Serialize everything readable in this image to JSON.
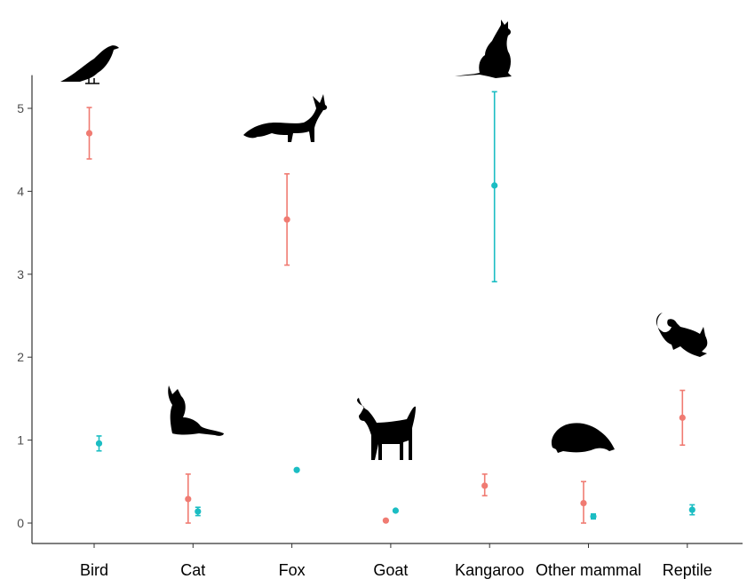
{
  "chart_data": {
    "type": "scatter",
    "categories": [
      "Bird",
      "Cat",
      "Fox",
      "Goat",
      "Kangaroo",
      "Other mammal",
      "Reptile"
    ],
    "ylabel": "",
    "ylim": [
      0,
      5.4
    ],
    "yticks": [
      "0",
      "1",
      "2",
      "3",
      "4",
      "5"
    ],
    "grid": false,
    "series": [
      {
        "color": "#F07B72",
        "values": [
          4.7,
          0.29,
          3.66,
          0.03,
          0.45,
          0.24,
          1.27
        ],
        "lower": [
          4.39,
          0.0,
          3.11,
          0.03,
          0.33,
          0.0,
          0.94
        ],
        "upper": [
          5.01,
          0.59,
          4.21,
          0.03,
          0.59,
          0.5,
          1.6
        ]
      },
      {
        "color": "#1BBDC3",
        "values": [
          0.96,
          0.14,
          0.64,
          0.15,
          4.07,
          0.08,
          0.16
        ],
        "lower": [
          0.87,
          0.09,
          0.63,
          0.14,
          2.91,
          0.05,
          0.1
        ],
        "upper": [
          1.05,
          0.19,
          0.65,
          0.16,
          5.2,
          0.11,
          0.22
        ]
      }
    ],
    "icons": [
      "bird-icon",
      "cat-icon",
      "fox-icon",
      "goat-icon",
      "kangaroo-icon",
      "echidna-icon",
      "lizard-icon"
    ]
  }
}
